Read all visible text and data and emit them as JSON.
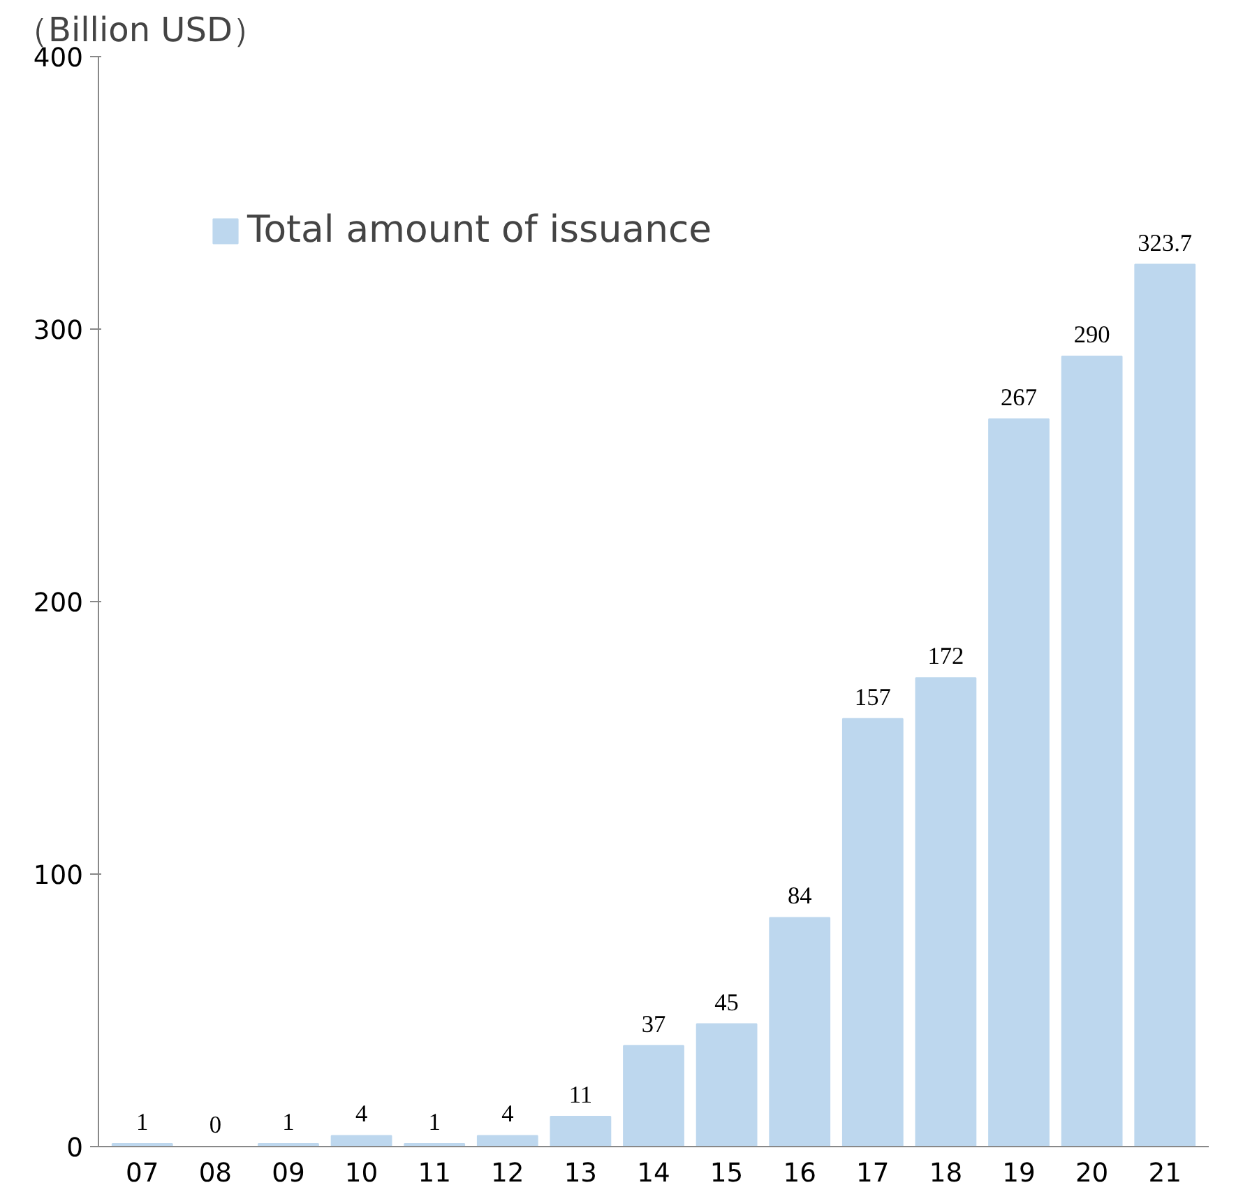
{
  "chart_data": {
    "type": "bar",
    "ylabel": "（Billion USD）",
    "categories": [
      "07",
      "08",
      "09",
      "10",
      "11",
      "12",
      "13",
      "14",
      "15",
      "16",
      "17",
      "18",
      "19",
      "20",
      "21"
    ],
    "series": [
      {
        "name": "Total amount of issuance",
        "color": "#bdd7ee",
        "values": [
          1,
          0,
          1,
          4,
          1,
          4,
          11,
          37,
          45,
          84,
          157,
          172,
          267,
          290,
          323.7
        ]
      }
    ],
    "ylim": [
      0,
      400
    ],
    "yticks": [
      0,
      100,
      200,
      300,
      400
    ],
    "data_labels": true,
    "grid": false,
    "legend": "top left"
  }
}
